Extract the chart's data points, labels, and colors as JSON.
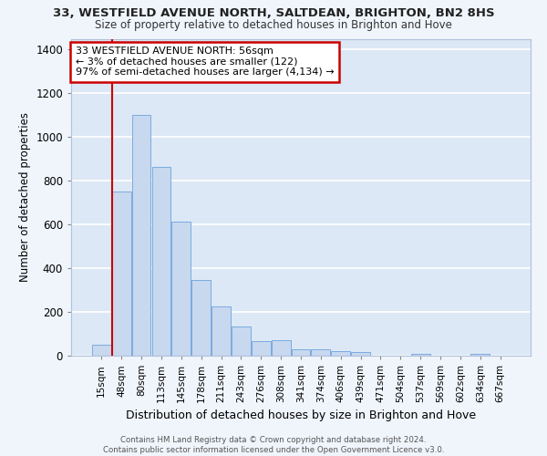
{
  "title_line1": "33, WESTFIELD AVENUE NORTH, SALTDEAN, BRIGHTON, BN2 8HS",
  "title_line2": "Size of property relative to detached houses in Brighton and Hove",
  "xlabel": "Distribution of detached houses by size in Brighton and Hove",
  "ylabel": "Number of detached properties",
  "categories": [
    "15sqm",
    "48sqm",
    "80sqm",
    "113sqm",
    "145sqm",
    "178sqm",
    "211sqm",
    "243sqm",
    "276sqm",
    "308sqm",
    "341sqm",
    "374sqm",
    "406sqm",
    "439sqm",
    "471sqm",
    "504sqm",
    "537sqm",
    "569sqm",
    "602sqm",
    "634sqm",
    "667sqm"
  ],
  "values": [
    50,
    750,
    1100,
    865,
    615,
    345,
    225,
    135,
    65,
    70,
    30,
    30,
    20,
    15,
    0,
    0,
    10,
    0,
    0,
    10,
    0
  ],
  "bar_color": "#c8d8ef",
  "bar_edge_color": "#7aabe0",
  "marker_label_line1": "33 WESTFIELD AVENUE NORTH: 56sqm",
  "marker_label_line2": "← 3% of detached houses are smaller (122)",
  "marker_label_line3": "97% of semi-detached houses are larger (4,134) →",
  "vline_color": "#cc0000",
  "annotation_box_edge_color": "#cc0000",
  "ylim": [
    0,
    1450
  ],
  "yticks": [
    0,
    200,
    400,
    600,
    800,
    1000,
    1200,
    1400
  ],
  "background_color": "#dce8f5",
  "grid_color": "#ffffff",
  "footer_line1": "Contains HM Land Registry data © Crown copyright and database right 2024.",
  "footer_line2": "Contains public sector information licensed under the Open Government Licence v3.0."
}
